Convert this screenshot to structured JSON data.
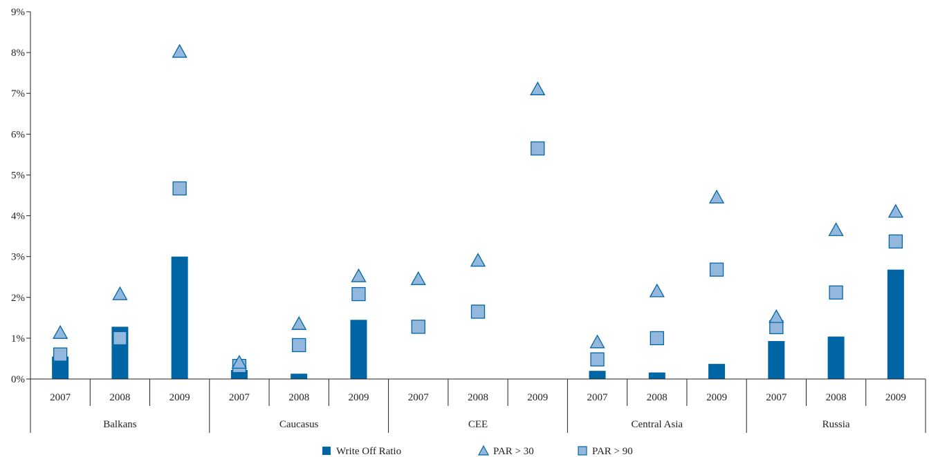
{
  "chart_data": {
    "type": "bar",
    "title": "",
    "xlabel": "",
    "ylabel": "",
    "ylim": [
      0,
      9
    ],
    "y_ticks": [
      "0%",
      "1%",
      "2%",
      "3%",
      "4%",
      "5%",
      "6%",
      "7%",
      "8%",
      "9%"
    ],
    "grid": false,
    "legend_position": "bottom-center",
    "groups": [
      "Balkans",
      "Caucasus",
      "CEE",
      "Central Asia",
      "Russia"
    ],
    "years": [
      "2007",
      "2008",
      "2009"
    ],
    "series": [
      {
        "name": "Write Off Ratio",
        "mark": "bar",
        "color": "#0065a4",
        "values": [
          0.55,
          1.28,
          3.0,
          0.22,
          0.13,
          1.45,
          0,
          0,
          0,
          0.2,
          0.16,
          0.37,
          0.93,
          1.04,
          2.68
        ]
      },
      {
        "name": "PAR > 30",
        "mark": "triangle",
        "color": "#94b8dd",
        "values": [
          1.13,
          2.08,
          8.02,
          0.4,
          1.35,
          2.52,
          2.45,
          2.9,
          7.1,
          0.9,
          2.15,
          4.45,
          1.52,
          3.65,
          4.1
        ]
      },
      {
        "name": "PAR > 90",
        "mark": "square",
        "color": "#94b8dd",
        "values": [
          0.6,
          1.0,
          4.67,
          0.32,
          0.83,
          2.08,
          1.28,
          1.65,
          5.65,
          0.48,
          1.0,
          2.68,
          1.27,
          2.12,
          3.37
        ]
      }
    ]
  }
}
